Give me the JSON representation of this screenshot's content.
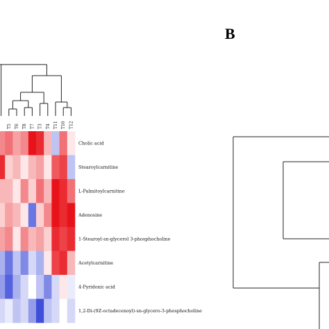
{
  "panel_b_letter": "B",
  "colors": {
    "high": "#e8131a",
    "mid": "#ffffff",
    "low": "#2b3bd6",
    "tree": "#222222"
  },
  "chart_data": [
    {
      "type": "heatmap",
      "rows": [
        "Cholic acid",
        "Stearoylcarnitine",
        "L-Palmitoylcarnitine",
        "Adenosine",
        "1-Stearoyl-sn-glycerol 3-phosphocholine",
        "Acetylcarnitine",
        "4-Pyridoxic acid",
        "1,2-Di-(9Z-octadecenoyl)-sn-glycero-3-phosphocholine"
      ],
      "columns": [
        "",
        "T5",
        "T6",
        "T8",
        "T7",
        "T3",
        "T4",
        "T11",
        "T10",
        "T12"
      ],
      "values": [
        [
          0.5,
          0.6,
          0.4,
          0.5,
          1.0,
          0.9,
          0.3,
          -0.3,
          0.6,
          0.1
        ],
        [
          0.9,
          0.2,
          0.3,
          0.1,
          0.3,
          0.4,
          0.1,
          0.7,
          0.8,
          -0.3
        ],
        [
          0.3,
          0.3,
          0.1,
          0.5,
          0.2,
          0.6,
          0.3,
          1.0,
          0.9,
          0.6
        ],
        [
          0.2,
          0.4,
          0.3,
          0.1,
          -0.7,
          0.2,
          0.5,
          1.0,
          0.9,
          1.0
        ],
        [
          0.4,
          0.5,
          0.1,
          0.5,
          0.3,
          0.4,
          0.2,
          0.9,
          0.8,
          0.9
        ],
        [
          -0.4,
          -0.7,
          -0.3,
          -0.6,
          -0.2,
          -0.4,
          0.1,
          0.8,
          0.9,
          0.3
        ],
        [
          -0.5,
          -0.8,
          -0.4,
          -0.2,
          0.0,
          -0.3,
          -0.6,
          -0.2,
          0.1,
          -0.1
        ],
        [
          -0.2,
          -0.1,
          -0.3,
          -0.2,
          -0.5,
          -0.9,
          -0.3,
          -0.2,
          0.0,
          -0.2
        ]
      ],
      "row_clustering": true,
      "col_clustering": true
    },
    {
      "type": "dendrogram",
      "orientation": "horizontal",
      "leaves": 5
    }
  ]
}
